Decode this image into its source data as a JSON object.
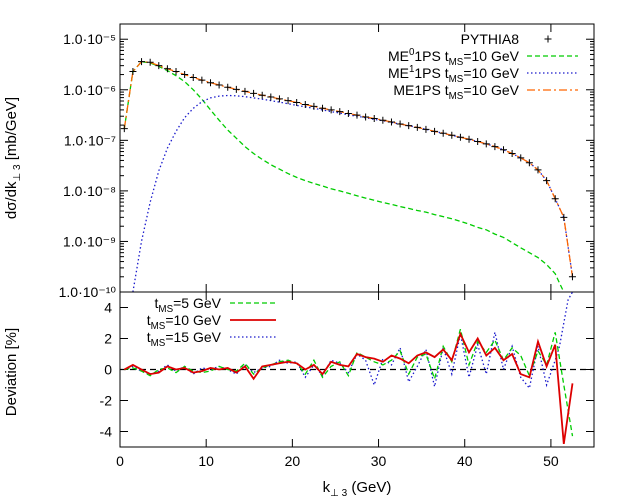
{
  "chart_data": [
    {
      "type": "line",
      "panel": "top",
      "ylabel": "dσ/dk⊥3   [mb/GeV]",
      "y_scale": "log",
      "xlim": [
        0,
        55
      ],
      "ylim": [
        1e-10,
        2e-05
      ],
      "grid": false,
      "legend_position": "top-right",
      "y_tick_labels": [
        "1.0·10⁻⁵",
        "1.0·10⁻⁶",
        "1.0·10⁻⁷",
        "1.0·10⁻⁸",
        "1.0·10⁻⁹",
        "1.0·10⁻¹⁰"
      ],
      "series": [
        {
          "name": "PYTHIA8",
          "style": "points-plus",
          "color": "#000000",
          "x": [
            0.5,
            1.5,
            2.5,
            3.5,
            4.5,
            5.5,
            6.5,
            7.5,
            8.5,
            9.5,
            10.5,
            11.5,
            12.5,
            13.5,
            14.5,
            15.5,
            16.5,
            17.5,
            18.5,
            19.5,
            20.5,
            21.5,
            22.5,
            23.5,
            24.5,
            25.5,
            26.5,
            27.5,
            28.5,
            29.5,
            30.5,
            31.5,
            32.5,
            33.5,
            34.5,
            35.5,
            36.5,
            37.5,
            38.5,
            39.5,
            40.5,
            41.5,
            42.5,
            43.5,
            44.5,
            45.5,
            46.5,
            47.5,
            48.5,
            49.5,
            50.5,
            51.5,
            52.5
          ],
          "y": [
            1.7e-07,
            2.3e-06,
            3.6e-06,
            3.5e-06,
            3e-06,
            2.6e-06,
            2.3e-06,
            2e-06,
            1.75e-06,
            1.55e-06,
            1.38e-06,
            1.24e-06,
            1.12e-06,
            1.02e-06,
            9.3e-07,
            8.5e-07,
            7.8e-07,
            7.2e-07,
            6.6e-07,
            6.1e-07,
            5.6e-07,
            5.1e-07,
            4.7e-07,
            4.3e-07,
            4e-07,
            3.7e-07,
            3.4e-07,
            3.15e-07,
            2.9e-07,
            2.7e-07,
            2.5e-07,
            2.3e-07,
            2.1e-07,
            1.95e-07,
            1.8e-07,
            1.65e-07,
            1.5e-07,
            1.38e-07,
            1.26e-07,
            1.15e-07,
            1.05e-07,
            9.5e-08,
            8.5e-08,
            7.5e-08,
            6.5e-08,
            5.5e-08,
            4.5e-08,
            3.6e-08,
            2.6e-08,
            1.6e-08,
            7e-09,
            3e-09,
            2e-10
          ]
        },
        {
          "name": "ME⁰1PS t_MS=10 GeV",
          "label_parts": {
            "main": "ME",
            "sup": "0",
            "mid": "1PS t",
            "sub": "MS",
            "tail": "=10 GeV"
          },
          "style": "dashed",
          "color": "#00cc00",
          "x": [
            0.5,
            1.5,
            2.5,
            3.5,
            4.5,
            5.5,
            6.5,
            7.5,
            8.5,
            9.5,
            10.5,
            11.5,
            12.5,
            13.5,
            14.5,
            15.5,
            16.5,
            17.5,
            18.5,
            19.5,
            20.5,
            21.5,
            22.5,
            23.5,
            24.5,
            25.5,
            26.5,
            27.5,
            28.5,
            29.5,
            30.5,
            31.5,
            32.5,
            33.5,
            34.5,
            35.5,
            36.5,
            37.5,
            38.5,
            39.5,
            40.5,
            41.5,
            42.5,
            43.5,
            44.5,
            45.5,
            46.5,
            47.5,
            48.5,
            49.5,
            50.5,
            51.0,
            51.5
          ],
          "y": [
            1.7e-07,
            2.3e-06,
            3.6e-06,
            3.4e-06,
            2.9e-06,
            2.4e-06,
            1.9e-06,
            1.45e-06,
            1e-06,
            6.5e-07,
            4e-07,
            2.5e-07,
            1.6e-07,
            1.1e-07,
            7.5e-08,
            5.5e-08,
            4.2e-08,
            3.3e-08,
            2.7e-08,
            2.2e-08,
            1.85e-08,
            1.6e-08,
            1.4e-08,
            1.25e-08,
            1.1e-08,
            1e-08,
            9e-09,
            8e-09,
            7.2e-09,
            6.5e-09,
            5.9e-09,
            5.4e-09,
            4.9e-09,
            4.5e-09,
            4.1e-09,
            3.8e-09,
            3.4e-09,
            3.1e-09,
            2.8e-09,
            2.5e-09,
            2.2e-09,
            1.9e-09,
            1.7e-09,
            1.4e-09,
            1.2e-09,
            9.5e-10,
            7.5e-10,
            6e-10,
            4.8e-10,
            3.5e-10,
            2.3e-10,
            1.5e-10,
            1e-10
          ]
        },
        {
          "name": "ME¹1PS t_MS=10 GeV",
          "label_parts": {
            "main": "ME",
            "sup": "1",
            "mid": "1PS t",
            "sub": "MS",
            "tail": "=10 GeV"
          },
          "style": "dotted",
          "color": "#1a1acc",
          "x": [
            1.5,
            2.5,
            3.5,
            4.5,
            5.5,
            6.5,
            7.5,
            8.5,
            9.5,
            10.5,
            11.5,
            12.5,
            13.5,
            14.5,
            15.5,
            16.5,
            17.5,
            18.5,
            19.5,
            20.5,
            21.5,
            22.5,
            23.5,
            24.5,
            25.5,
            26.5,
            27.5,
            28.5,
            29.5,
            30.5,
            31.5,
            32.5,
            33.5,
            34.5,
            35.5,
            36.5,
            37.5,
            38.5,
            39.5,
            40.5,
            41.5,
            42.5,
            43.5,
            44.5,
            45.5,
            46.5,
            47.5,
            48.5,
            49.5,
            50.5,
            51.5,
            52.5
          ],
          "y": [
            1e-10,
            1e-09,
            6e-09,
            2.5e-08,
            7e-08,
            1.5e-07,
            2.8e-07,
            4.3e-07,
            5.8e-07,
            6.9e-07,
            7.5e-07,
            7.7e-07,
            7.6e-07,
            7.3e-07,
            6.9e-07,
            6.5e-07,
            6.1e-07,
            5.7e-07,
            5.3e-07,
            4.9e-07,
            4.6e-07,
            4.3e-07,
            4e-07,
            3.7e-07,
            3.45e-07,
            3.2e-07,
            3e-07,
            2.8e-07,
            2.6e-07,
            2.45e-07,
            2.25e-07,
            2.1e-07,
            1.95e-07,
            1.8e-07,
            1.65e-07,
            1.5e-07,
            1.38e-07,
            1.26e-07,
            1.15e-07,
            1.05e-07,
            9.5e-08,
            8.5e-08,
            7.5e-08,
            6.5e-08,
            5.5e-08,
            4.5e-08,
            3.6e-08,
            2.6e-08,
            1.6e-08,
            7e-09,
            3e-09,
            2e-10
          ]
        },
        {
          "name": "ME1PS t_MS=10 GeV",
          "label_parts": {
            "main": "ME1PS t",
            "sup": "",
            "mid": "",
            "sub": "MS",
            "tail": "=10 GeV"
          },
          "style": "dash-dot",
          "color": "#ff6600",
          "x": [
            0.5,
            1.5,
            2.5,
            3.5,
            4.5,
            5.5,
            6.5,
            7.5,
            8.5,
            9.5,
            10.5,
            11.5,
            12.5,
            13.5,
            14.5,
            15.5,
            16.5,
            17.5,
            18.5,
            19.5,
            20.5,
            21.5,
            22.5,
            23.5,
            24.5,
            25.5,
            26.5,
            27.5,
            28.5,
            29.5,
            30.5,
            31.5,
            32.5,
            33.5,
            34.5,
            35.5,
            36.5,
            37.5,
            38.5,
            39.5,
            40.5,
            41.5,
            42.5,
            43.5,
            44.5,
            45.5,
            46.5,
            47.5,
            48.5,
            49.5,
            50.5,
            51.5,
            52.5
          ],
          "y": [
            1.7e-07,
            2.3e-06,
            3.6e-06,
            3.5e-06,
            3e-06,
            2.6e-06,
            2.3e-06,
            2e-06,
            1.75e-06,
            1.55e-06,
            1.38e-06,
            1.24e-06,
            1.12e-06,
            1.02e-06,
            9.3e-07,
            8.5e-07,
            7.8e-07,
            7.2e-07,
            6.6e-07,
            6.1e-07,
            5.6e-07,
            5.1e-07,
            4.7e-07,
            4.3e-07,
            4e-07,
            3.7e-07,
            3.4e-07,
            3.15e-07,
            2.9e-07,
            2.7e-07,
            2.5e-07,
            2.3e-07,
            2.1e-07,
            1.95e-07,
            1.8e-07,
            1.65e-07,
            1.5e-07,
            1.38e-07,
            1.26e-07,
            1.15e-07,
            1.05e-07,
            9.5e-08,
            8.5e-08,
            7.5e-08,
            6.5e-08,
            5.5e-08,
            4.5e-08,
            3.6e-08,
            2.6e-08,
            1.6e-08,
            7e-09,
            3e-09,
            2e-10
          ]
        }
      ]
    },
    {
      "type": "line",
      "panel": "bottom",
      "xlabel": "k⊥3 (GeV)",
      "ylabel": "Deviation [%]",
      "xlim": [
        0,
        55
      ],
      "ylim": [
        -5,
        5
      ],
      "grid": false,
      "legend_position": "top-left",
      "x_ticks": [
        0,
        10,
        20,
        30,
        40,
        50
      ],
      "y_ticks": [
        4,
        2,
        0,
        -2,
        -4
      ],
      "reference_line": {
        "y": 0,
        "style": "dashed",
        "color": "#000000"
      },
      "series": [
        {
          "name": "t_MS=5 GeV",
          "label_parts": {
            "main": "t",
            "sub": "MS",
            "tail": "=5 GeV"
          },
          "style": "dashed",
          "color": "#00cc00",
          "x": [
            0.5,
            1.5,
            2.5,
            3.5,
            4.5,
            5.5,
            6.5,
            7.5,
            8.5,
            9.5,
            10.5,
            11.5,
            12.5,
            13.5,
            14.5,
            15.5,
            16.5,
            17.5,
            18.5,
            19.5,
            20.5,
            21.5,
            22.5,
            23.5,
            24.5,
            25.5,
            26.5,
            27.5,
            28.5,
            29.5,
            30.5,
            31.5,
            32.5,
            33.5,
            34.5,
            35.5,
            36.5,
            37.5,
            38.5,
            39.5,
            40.5,
            41.5,
            42.5,
            43.5,
            44.5,
            45.5,
            46.5,
            47.5,
            48.5,
            49.5,
            50.5,
            51.5,
            52.5
          ],
          "y": [
            0.0,
            0.1,
            -0.1,
            -0.4,
            0.0,
            0.1,
            -0.2,
            0.2,
            -0.1,
            -0.2,
            -0.1,
            0.2,
            0.0,
            -0.1,
            0.4,
            -0.3,
            0.1,
            0.3,
            0.5,
            0.6,
            0.4,
            -0.3,
            0.6,
            -0.5,
            0.2,
            0.5,
            -0.4,
            1.1,
            0.8,
            0.5,
            0.3,
            0.6,
            1.2,
            -0.3,
            0.8,
            1.0,
            -0.6,
            1.5,
            0.5,
            2.6,
            0.3,
            1.8,
            1.1,
            1.9,
            0.6,
            1.4,
            0.9,
            -0.4,
            1.2,
            0.3,
            2.4,
            -1.0,
            -4.3
          ]
        },
        {
          "name": "t_MS=10 GeV",
          "label_parts": {
            "main": "t",
            "sub": "MS",
            "tail": "=10 GeV"
          },
          "style": "solid",
          "color": "#dd0000",
          "x": [
            0.5,
            1.5,
            2.5,
            3.5,
            4.5,
            5.5,
            6.5,
            7.5,
            8.5,
            9.5,
            10.5,
            11.5,
            12.5,
            13.5,
            14.5,
            15.5,
            16.5,
            17.5,
            18.5,
            19.5,
            20.5,
            21.5,
            22.5,
            23.5,
            24.5,
            25.5,
            26.5,
            27.5,
            28.5,
            29.5,
            30.5,
            31.5,
            32.5,
            33.5,
            34.5,
            35.5,
            36.5,
            37.5,
            38.5,
            39.5,
            40.5,
            41.5,
            42.5,
            43.5,
            44.5,
            45.5,
            46.5,
            47.5,
            48.5,
            49.5,
            50.5,
            51.5,
            52.5
          ],
          "y": [
            0.0,
            0.3,
            0.0,
            -0.3,
            -0.2,
            0.2,
            0.0,
            0.1,
            -0.2,
            -0.1,
            0.1,
            0.0,
            0.1,
            -0.2,
            0.2,
            -0.6,
            0.2,
            0.3,
            0.4,
            0.5,
            0.4,
            0.0,
            0.3,
            -0.3,
            0.5,
            0.3,
            0.2,
            1.0,
            0.8,
            0.7,
            0.5,
            0.9,
            0.7,
            0.4,
            0.9,
            1.1,
            0.8,
            1.3,
            0.6,
            2.3,
            1.1,
            2.0,
            0.9,
            1.4,
            0.6,
            1.0,
            -0.3,
            -0.5,
            1.8,
            0.2,
            1.6,
            -4.8,
            -0.9
          ]
        },
        {
          "name": "t_MS=15 GeV",
          "label_parts": {
            "main": "t",
            "sub": "MS",
            "tail": "=15 GeV"
          },
          "style": "dotted",
          "color": "#1a1acc",
          "x": [
            0.5,
            1.5,
            2.5,
            3.5,
            4.5,
            5.5,
            6.5,
            7.5,
            8.5,
            9.5,
            10.5,
            11.5,
            12.5,
            13.5,
            14.5,
            15.5,
            16.5,
            17.5,
            18.5,
            19.5,
            20.5,
            21.5,
            22.5,
            23.5,
            24.5,
            25.5,
            26.5,
            27.5,
            28.5,
            29.5,
            30.5,
            31.5,
            32.5,
            33.5,
            34.5,
            35.5,
            36.5,
            37.5,
            38.5,
            39.5,
            40.5,
            41.5,
            42.5,
            43.5,
            44.5,
            45.5,
            46.5,
            47.5,
            48.5,
            49.5,
            50.5,
            51.0,
            51.5,
            52.0,
            52.5
          ],
          "y": [
            0.0,
            0.2,
            -0.1,
            -0.3,
            -0.1,
            0.3,
            -0.1,
            0.2,
            -0.3,
            0.1,
            0.0,
            0.2,
            0.0,
            -0.3,
            0.3,
            -0.2,
            0.1,
            0.2,
            0.6,
            0.4,
            0.5,
            -0.5,
            0.3,
            -0.4,
            0.6,
            0.4,
            -0.2,
            1.0,
            0.6,
            -1.0,
            0.7,
            0.3,
            1.4,
            -0.8,
            0.2,
            1.3,
            -1.1,
            1.4,
            -0.3,
            2.3,
            -0.5,
            1.6,
            -0.3,
            2.4,
            0.0,
            1.5,
            -0.5,
            -1.2,
            1.5,
            -1.0,
            0.6,
            1.5,
            3.0,
            4.5,
            5.0
          ]
        }
      ]
    }
  ]
}
